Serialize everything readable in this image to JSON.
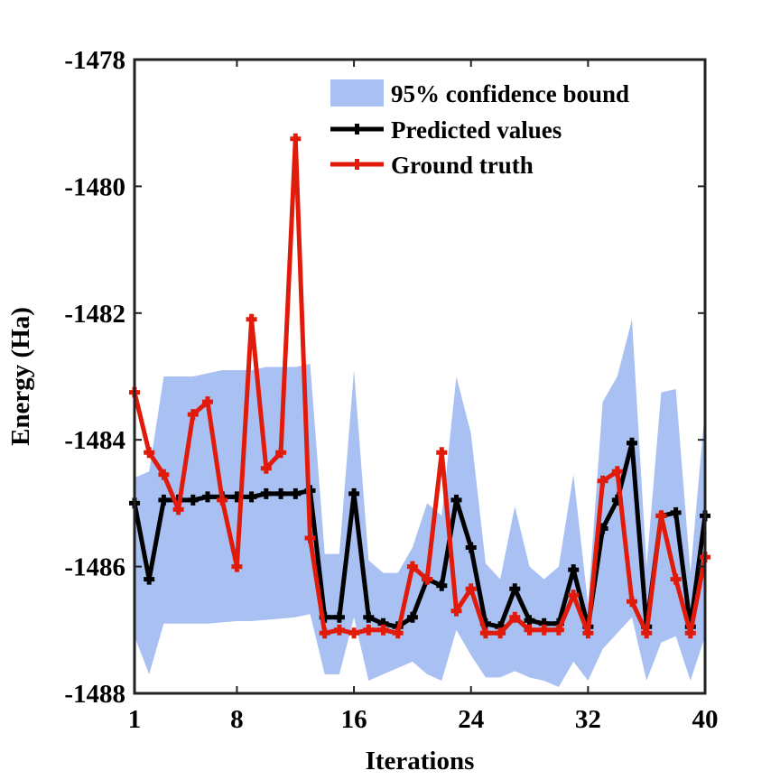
{
  "chart_data": {
    "type": "line",
    "title": "",
    "xlabel": "Iterations",
    "ylabel": "Energy (Ha)",
    "xlim": [
      1,
      40
    ],
    "ylim": [
      -1488,
      -1478
    ],
    "xticks": [
      1,
      8,
      16,
      24,
      32,
      40
    ],
    "yticks": [
      -1478,
      -1480,
      -1482,
      -1484,
      -1486,
      -1488
    ],
    "grid": false,
    "legend_position": "top-right",
    "x": [
      1,
      2,
      3,
      4,
      5,
      6,
      7,
      8,
      9,
      10,
      11,
      12,
      13,
      14,
      15,
      16,
      17,
      18,
      19,
      20,
      21,
      22,
      23,
      24,
      25,
      26,
      27,
      28,
      29,
      30,
      31,
      32,
      33,
      34,
      35,
      36,
      37,
      38,
      39,
      40
    ],
    "band": {
      "name": "95% confidence bound",
      "color": "#a9c0f2",
      "upper": [
        -1484.6,
        -1484.5,
        -1483.0,
        -1483.0,
        -1483.0,
        -1482.95,
        -1482.9,
        -1482.9,
        -1482.9,
        -1482.85,
        -1482.85,
        -1482.85,
        -1482.8,
        -1485.8,
        -1485.8,
        -1482.9,
        -1485.9,
        -1486.1,
        -1486.1,
        -1485.7,
        -1485.0,
        -1485.2,
        -1483.0,
        -1483.9,
        -1485.95,
        -1486.2,
        -1485.05,
        -1486.0,
        -1486.2,
        -1486.0,
        -1484.55,
        -1486.6,
        -1483.4,
        -1483.0,
        -1482.1,
        -1486.0,
        -1483.25,
        -1483.2,
        -1486.1,
        -1483.5
      ],
      "lower": [
        -1487.1,
        -1487.7,
        -1486.9,
        -1486.9,
        -1486.9,
        -1486.9,
        -1486.88,
        -1486.86,
        -1486.86,
        -1486.84,
        -1486.82,
        -1486.8,
        -1486.75,
        -1487.7,
        -1487.7,
        -1486.8,
        -1487.8,
        -1487.7,
        -1487.6,
        -1487.5,
        -1487.7,
        -1487.8,
        -1487.0,
        -1487.4,
        -1487.75,
        -1487.75,
        -1487.65,
        -1487.75,
        -1487.8,
        -1487.9,
        -1487.5,
        -1487.8,
        -1487.3,
        -1487.05,
        -1486.8,
        -1487.8,
        -1487.2,
        -1487.1,
        -1487.8,
        -1487.1
      ]
    },
    "series": [
      {
        "name": "Predicted values",
        "color": "#000000",
        "values": [
          -1485.0,
          -1486.2,
          -1484.95,
          -1484.95,
          -1484.95,
          -1484.9,
          -1484.9,
          -1484.9,
          -1484.9,
          -1484.85,
          -1484.85,
          -1484.85,
          -1484.8,
          -1486.8,
          -1486.8,
          -1484.85,
          -1486.8,
          -1486.9,
          -1486.95,
          -1486.8,
          -1486.2,
          -1486.3,
          -1484.95,
          -1485.7,
          -1486.9,
          -1486.95,
          -1486.35,
          -1486.85,
          -1486.9,
          -1486.9,
          -1486.05,
          -1486.95,
          -1485.4,
          -1484.95,
          -1484.05,
          -1486.95,
          -1485.2,
          -1485.15,
          -1486.95,
          -1485.2
        ]
      },
      {
        "name": "Ground truth",
        "color": "#e01b0c",
        "values": [
          -1483.25,
          -1484.2,
          -1484.55,
          -1485.1,
          -1483.6,
          -1483.4,
          -1484.95,
          -1486.0,
          -1482.1,
          -1484.45,
          -1484.2,
          -1479.25,
          -1485.55,
          -1487.05,
          -1487.0,
          -1487.05,
          -1487.0,
          -1487.0,
          -1487.05,
          -1486.0,
          -1486.2,
          -1484.2,
          -1486.7,
          -1486.35,
          -1487.05,
          -1487.05,
          -1486.8,
          -1487.0,
          -1487.0,
          -1487.0,
          -1486.45,
          -1487.05,
          -1484.65,
          -1484.5,
          -1486.55,
          -1487.05,
          -1485.2,
          -1486.2,
          -1487.05,
          -1485.85
        ]
      }
    ]
  }
}
